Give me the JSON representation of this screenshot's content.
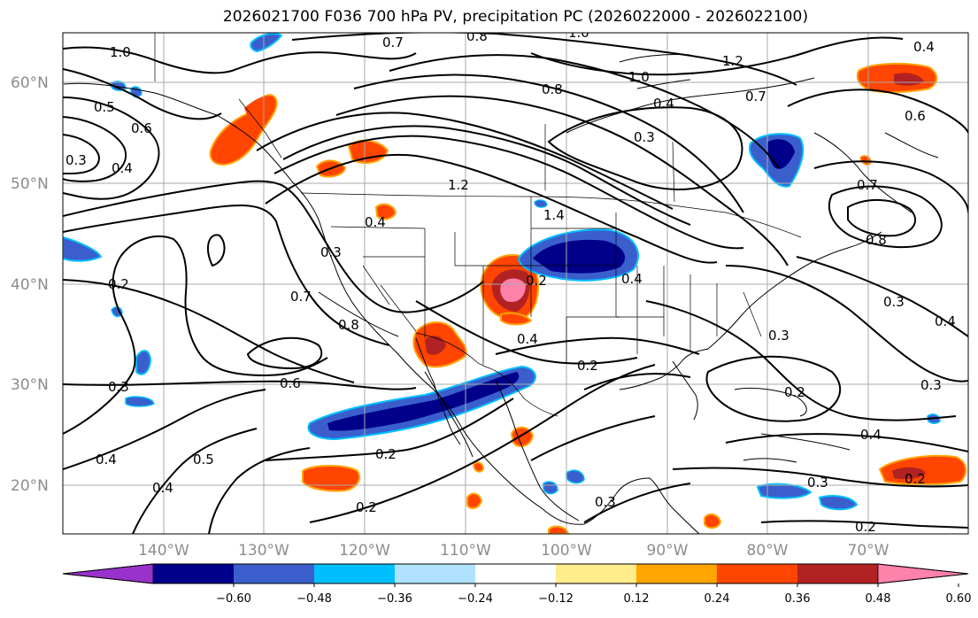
{
  "title": "2026021700 F036 700 hPa PV, precipitation PC (2026022000 - 2026022100)",
  "lat_labels": [
    "60°N",
    "50°N",
    "40°N",
    "30°N",
    "20°N"
  ],
  "lon_labels": [
    "140°W",
    "130°W",
    "120°W",
    "110°W",
    "100°W",
    "90°W",
    "80°W",
    "70°W"
  ],
  "colorbar": {
    "ticks": [
      "−0.60",
      "−0.48",
      "−0.36",
      "−0.24",
      "−0.12",
      "0.12",
      "0.24",
      "0.36",
      "0.48",
      "0.60"
    ],
    "colors": [
      "#9932cc",
      "#00008b",
      "#3a5fcd",
      "#00bfff",
      "#b0e2ff",
      "#ffffff",
      "#ffec8b",
      "#ffa500",
      "#ff4500",
      "#b22222",
      "#ff82ab"
    ]
  },
  "contour_labels": [
    {
      "text": "1.0"
    },
    {
      "text": "0.7"
    },
    {
      "text": "0.8"
    },
    {
      "text": "1.0"
    },
    {
      "text": "0.4"
    },
    {
      "text": "1.2"
    },
    {
      "text": "1.0"
    },
    {
      "text": "0.8"
    },
    {
      "text": "0.4"
    },
    {
      "text": "0.7"
    },
    {
      "text": "0.6"
    },
    {
      "text": "0.5"
    },
    {
      "text": "0.6"
    },
    {
      "text": "0.3"
    },
    {
      "text": "0.4"
    },
    {
      "text": "1.2"
    },
    {
      "text": "1.4"
    },
    {
      "text": "0.3"
    },
    {
      "text": "0.7"
    },
    {
      "text": "0.8"
    },
    {
      "text": "0.4"
    },
    {
      "text": "0.3"
    },
    {
      "text": "0.2"
    },
    {
      "text": "0.7"
    },
    {
      "text": "0.8"
    },
    {
      "text": "0.2"
    },
    {
      "text": "0.4"
    },
    {
      "text": "0.4"
    },
    {
      "text": "0.2"
    },
    {
      "text": "0.3"
    },
    {
      "text": "0.3"
    },
    {
      "text": "0.4"
    },
    {
      "text": "0.3"
    },
    {
      "text": "0.6"
    },
    {
      "text": "0.2"
    },
    {
      "text": "0.3"
    },
    {
      "text": "0.4"
    },
    {
      "text": "0.4"
    },
    {
      "text": "0.5"
    },
    {
      "text": "0.4"
    },
    {
      "text": "0.2"
    },
    {
      "text": "0.2"
    },
    {
      "text": "0.3"
    },
    {
      "text": "0.3"
    },
    {
      "text": "0.2"
    },
    {
      "text": "0.2"
    }
  ]
}
